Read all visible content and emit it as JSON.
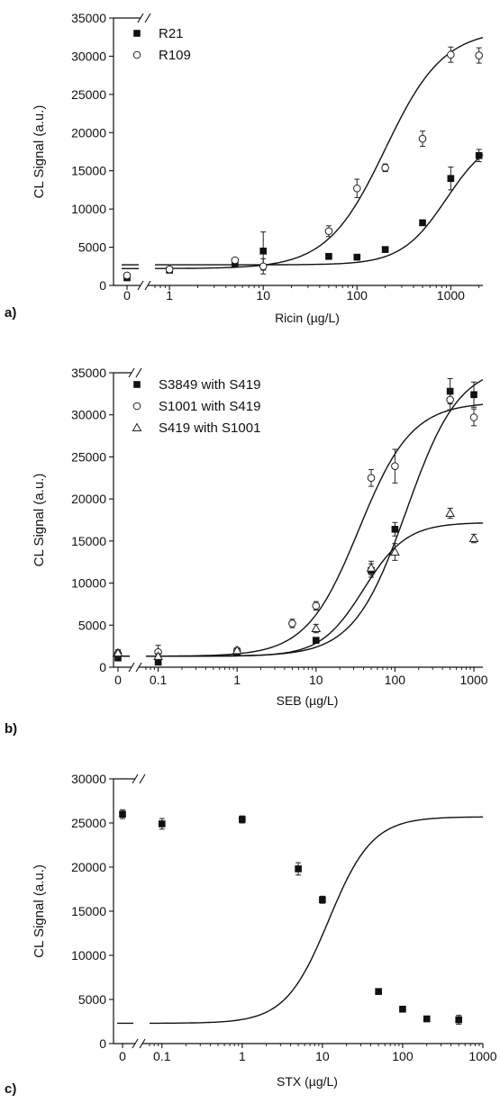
{
  "chart_data": [
    {
      "type": "scatter",
      "panel_label": "a)",
      "xlabel": "Ricin (µg/L)",
      "ylabel": "CL Signal (a.u.)",
      "xscale": "log-with-break",
      "zero_tick": "0",
      "xlim": [
        0.7,
        2200
      ],
      "ylim": [
        0,
        35000
      ],
      "xticks": [
        1,
        10,
        100,
        1000
      ],
      "xtick_labels": [
        "1",
        "10",
        "100",
        "1000"
      ],
      "yticks": [
        0,
        5000,
        10000,
        15000,
        20000,
        25000,
        30000,
        35000
      ],
      "ytick_labels": [
        "0",
        "5000",
        "10000",
        "15000",
        "20000",
        "25000",
        "30000",
        "35000"
      ],
      "legend": "top-left",
      "series": [
        {
          "name": "R21",
          "marker": "square-filled",
          "x": [
            0,
            1,
            5,
            10,
            50,
            100,
            200,
            500,
            1000,
            2000
          ],
          "y": [
            1000,
            2000,
            2800,
            4500,
            3800,
            3700,
            4700,
            8200,
            14000,
            17000
          ],
          "err": [
            300,
            200,
            200,
            2500,
            200,
            200,
            300,
            300,
            1500,
            800
          ],
          "fit": {
            "bottom": 2700,
            "top": 20000,
            "ec50": 900,
            "hill": 1.8
          }
        },
        {
          "name": "R109",
          "marker": "circle-open",
          "x": [
            0,
            1,
            5,
            10,
            50,
            100,
            200,
            500,
            1000,
            2000
          ],
          "y": [
            1300,
            2100,
            3300,
            2500,
            7100,
            12700,
            15400,
            19200,
            30200,
            30100
          ],
          "err": [
            300,
            200,
            300,
            1000,
            700,
            1200,
            500,
            1000,
            1000,
            1000
          ],
          "fit": {
            "bottom": 2200,
            "top": 33500,
            "ec50": 200,
            "hill": 1.4
          }
        }
      ]
    },
    {
      "type": "scatter",
      "panel_label": "b)",
      "xlabel": "SEB (µg/L)",
      "ylabel": "CL Signal (a.u.)",
      "xscale": "log-with-break",
      "zero_tick": "0",
      "xlim": [
        0.07,
        1300
      ],
      "ylim": [
        0,
        35000
      ],
      "xticks": [
        0.1,
        1,
        10,
        100,
        1000
      ],
      "xtick_labels": [
        "0.1",
        "1",
        "10",
        "100",
        "1000"
      ],
      "yticks": [
        0,
        5000,
        10000,
        15000,
        20000,
        25000,
        30000,
        35000
      ],
      "ytick_labels": [
        "0",
        "5000",
        "10000",
        "15000",
        "20000",
        "25000",
        "30000",
        "35000"
      ],
      "legend": "top-left",
      "series": [
        {
          "name": "S3849 with S419",
          "marker": "square-filled",
          "x": [
            0,
            0.1,
            1,
            10,
            50,
            100,
            500,
            1000
          ],
          "y": [
            1100,
            600,
            1800,
            3200,
            11500,
            16400,
            32800,
            32400
          ],
          "err": [
            200,
            200,
            200,
            200,
            800,
            800,
            1500,
            1500
          ],
          "fit": {
            "bottom": 1300,
            "top": 36000,
            "ec50": 140,
            "hill": 1.3
          }
        },
        {
          "name": "S1001 with S419",
          "marker": "circle-open",
          "x": [
            0,
            0.1,
            1,
            5,
            10,
            50,
            100,
            500,
            1000
          ],
          "y": [
            1600,
            1800,
            2000,
            5200,
            7300,
            22500,
            23900,
            31800,
            29700
          ],
          "err": [
            500,
            800,
            300,
            500,
            500,
            1000,
            2000,
            1200,
            1000
          ],
          "fit": {
            "bottom": 1300,
            "top": 31500,
            "ec50": 35,
            "hill": 1.3
          }
        },
        {
          "name": "S419 with S1001",
          "marker": "triangle-open",
          "x": [
            0,
            0.1,
            1,
            10,
            50,
            100,
            500,
            1000
          ],
          "y": [
            1700,
            1300,
            2000,
            4600,
            11800,
            13700,
            18300,
            15300
          ],
          "err": [
            300,
            300,
            200,
            500,
            800,
            1000,
            600,
            500
          ],
          "fit": {
            "bottom": 1300,
            "top": 17200,
            "ec50": 40,
            "hill": 1.6
          }
        }
      ]
    },
    {
      "type": "scatter",
      "panel_label": "c)",
      "xlabel": "STX (µg/L)",
      "ylabel": "CL Signal (a.u.)",
      "xscale": "log-with-break",
      "zero_tick": "0",
      "xlim": [
        0.07,
        1000
      ],
      "ylim": [
        0,
        30000
      ],
      "xticks": [
        0.1,
        1,
        10,
        100,
        1000
      ],
      "xtick_labels": [
        "0.1",
        "1",
        "10",
        "100",
        "1000"
      ],
      "yticks": [
        0,
        5000,
        10000,
        15000,
        20000,
        25000,
        30000
      ],
      "ytick_labels": [
        "0",
        "5000",
        "10000",
        "15000",
        "20000",
        "25000",
        "30000"
      ],
      "legend": "none",
      "series": [
        {
          "name": "",
          "marker": "square-filled",
          "x": [
            0,
            0.1,
            1,
            5,
            10,
            50,
            100,
            200,
            500
          ],
          "y": [
            26000,
            24900,
            25400,
            19800,
            16300,
            5900,
            3900,
            2800,
            2700
          ],
          "err": [
            500,
            600,
            400,
            700,
            400,
            200,
            200,
            200,
            500
          ],
          "fit": {
            "bottom": 2300,
            "top": 25700,
            "ec50": 12,
            "hill": 1.6
          }
        }
      ]
    }
  ]
}
